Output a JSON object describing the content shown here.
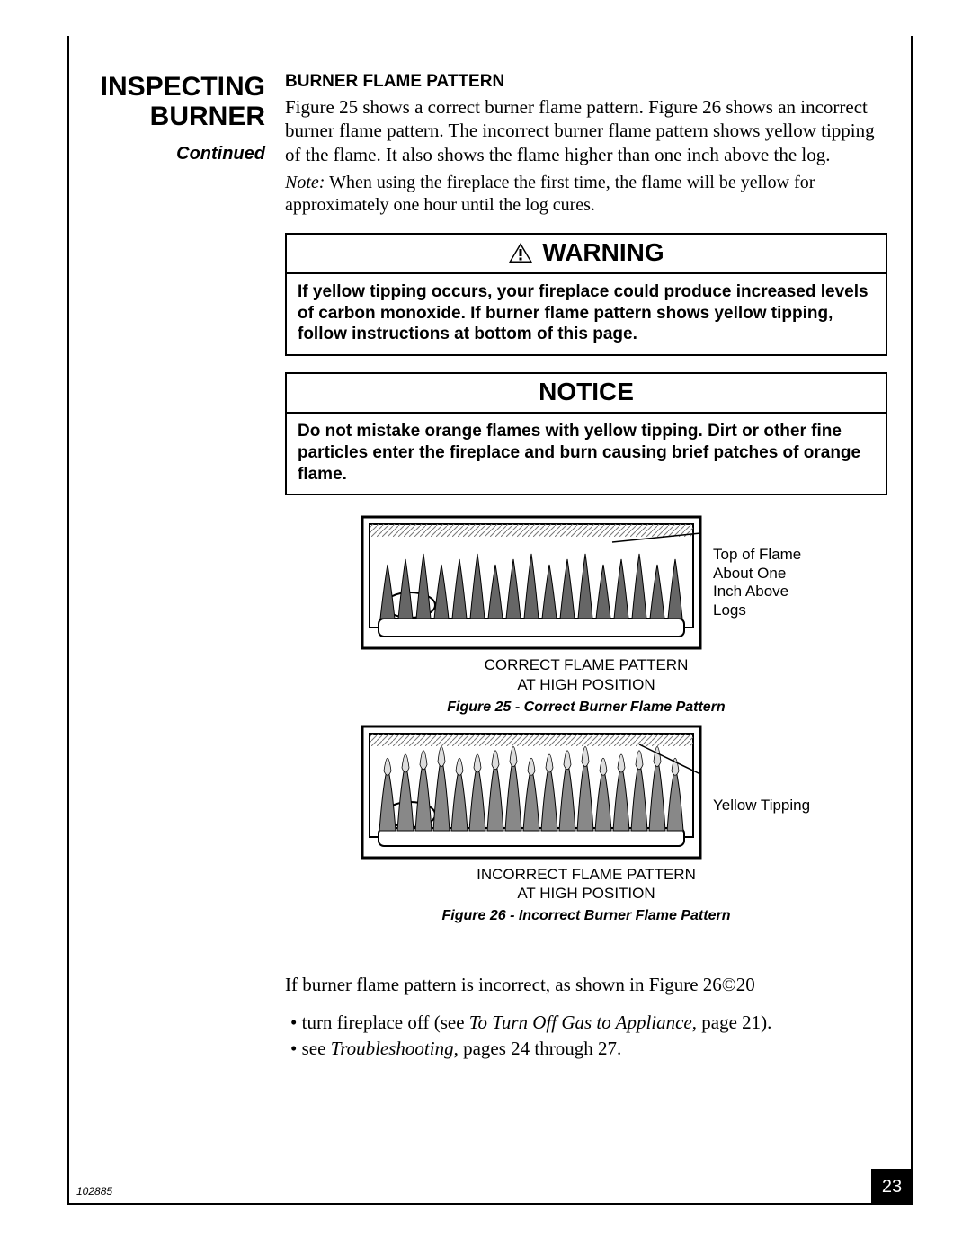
{
  "left": {
    "title_line1": "INSPECTING",
    "title_line2": "BURNER",
    "continued": "Continued"
  },
  "content": {
    "subhead": "BURNER FLAME PATTERN",
    "para1": "Figure 25 shows a correct burner flame pattern. Figure 26 shows an incorrect burner flame pattern. The incorrect burner flame pattern shows yellow tipping of the flame. It also shows the flame higher than one inch above the log.",
    "note_label": "Note:",
    "note_text": " When using the fireplace the first time, the flame will be yellow for approximately one hour until the log cures."
  },
  "warning": {
    "header": "WARNING",
    "body": "If yellow tipping occurs, your fireplace could produce increased levels of carbon monoxide. If burner flame pattern shows yellow tipping, follow instructions at bottom of this page."
  },
  "notice": {
    "header": "NOTICE",
    "body": "Do not mistake orange flames with yellow tipping. Dirt or other fine particles enter the fireplace and burn causing brief patches of orange flame."
  },
  "figure25": {
    "side_label": "Top of Flame About One Inch Above Logs",
    "sub_line1": "CORRECT FLAME PATTERN",
    "sub_line2": "AT HIGH POSITION",
    "caption": "Figure 25 - Correct Burner Flame Pattern",
    "flame_fill": "#666666",
    "flame_count": 17,
    "frame_stroke": "#000000"
  },
  "figure26": {
    "side_label": "Yellow Tipping",
    "sub_line1": "INCORRECT FLAME PATTERN",
    "sub_line2": "AT HIGH POSITION",
    "caption": "Figure 26  - Incorrect Burner Flame Pattern",
    "flame_fill": "#888888",
    "tip_fill": "#dddddd",
    "flame_count": 17,
    "frame_stroke": "#000000"
  },
  "instructions": {
    "lead": "If burner flame pattern is incorrect, as shown in Figure 26©20",
    "item1_pre": "turn fireplace off (see ",
    "item1_ital": "To Turn Off Gas to Appliance",
    "item1_post": ", page 21).",
    "item2_pre": "see ",
    "item2_ital": "Troubleshooting",
    "item2_post": ", pages 24 through 27."
  },
  "footer": {
    "page_num": "23",
    "doc_id": "102885"
  },
  "colors": {
    "page_bg": "#ffffff",
    "text": "#000000",
    "pagebox_bg": "#000000",
    "pagebox_fg": "#ffffff"
  }
}
